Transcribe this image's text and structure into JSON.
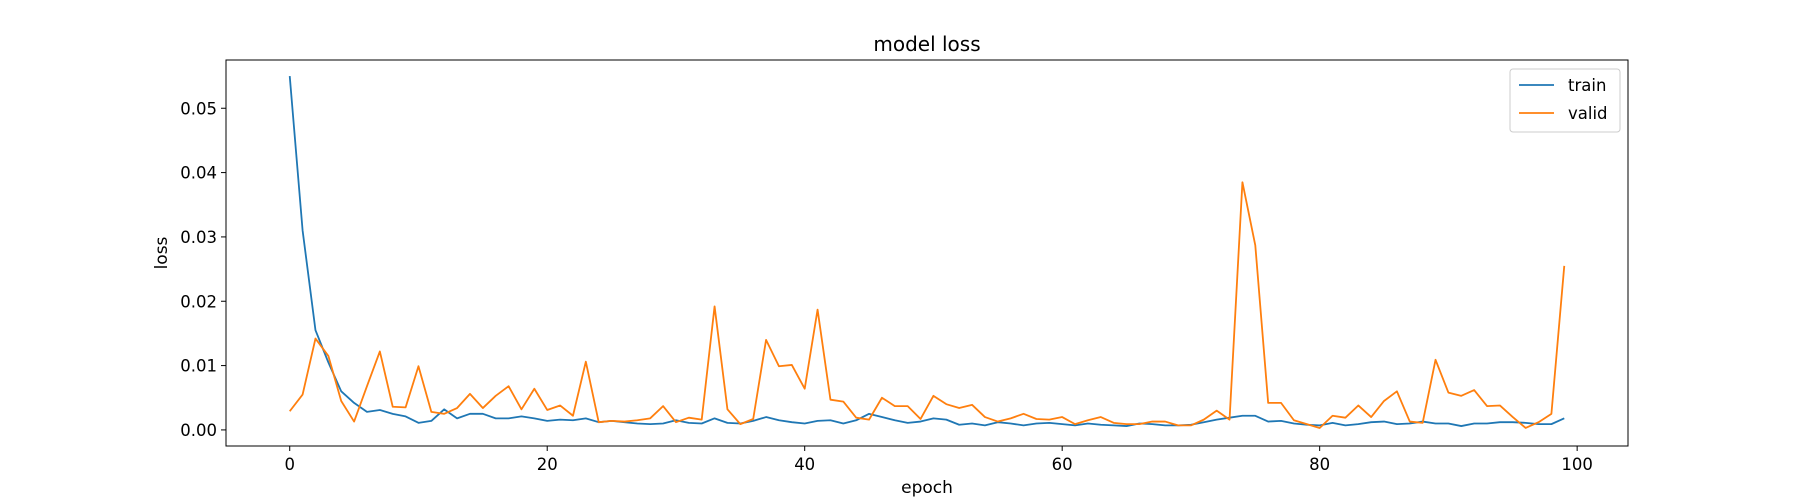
{
  "chart_data": {
    "type": "line",
    "title": "model loss",
    "xlabel": "epoch",
    "ylabel": "loss",
    "xlim": [
      -4.95,
      103.95
    ],
    "ylim": [
      -0.0025,
      0.0575
    ],
    "xticks": [
      0,
      20,
      40,
      60,
      80,
      100
    ],
    "xtick_labels": [
      "0",
      "20",
      "40",
      "60",
      "80",
      "100"
    ],
    "yticks": [
      0.0,
      0.01,
      0.02,
      0.03,
      0.04,
      0.05
    ],
    "ytick_labels": [
      "0.00",
      "0.01",
      "0.02",
      "0.03",
      "0.04",
      "0.05"
    ],
    "grid": false,
    "legend_position": "top-right",
    "series": [
      {
        "name": "train",
        "color": "#1f77b4",
        "values": [
          0.055,
          0.031,
          0.0155,
          0.0105,
          0.006,
          0.0042,
          0.0028,
          0.0031,
          0.0025,
          0.0021,
          0.0011,
          0.0014,
          0.0032,
          0.0018,
          0.0025,
          0.0025,
          0.0018,
          0.0018,
          0.0021,
          0.0018,
          0.0014,
          0.0016,
          0.0015,
          0.0018,
          0.0012,
          0.0014,
          0.0012,
          0.001,
          0.0009,
          0.001,
          0.0015,
          0.0011,
          0.001,
          0.0018,
          0.0011,
          0.001,
          0.0014,
          0.002,
          0.0015,
          0.0012,
          0.001,
          0.0014,
          0.0015,
          0.001,
          0.0015,
          0.0025,
          0.002,
          0.0015,
          0.0011,
          0.0013,
          0.0018,
          0.0016,
          0.0008,
          0.001,
          0.0007,
          0.0012,
          0.001,
          0.0007,
          0.001,
          0.0011,
          0.0009,
          0.0007,
          0.001,
          0.0008,
          0.0007,
          0.0006,
          0.001,
          0.0009,
          0.0007,
          0.0007,
          0.0008,
          0.0012,
          0.0016,
          0.0019,
          0.0022,
          0.0022,
          0.0013,
          0.0014,
          0.001,
          0.0008,
          0.0007,
          0.0011,
          0.0007,
          0.0009,
          0.0012,
          0.0013,
          0.0009,
          0.001,
          0.0013,
          0.001,
          0.001,
          0.0006,
          0.001,
          0.001,
          0.0012,
          0.0012,
          0.0011,
          0.0009,
          0.0009,
          0.0018
        ]
      },
      {
        "name": "valid",
        "color": "#ff7f0e",
        "values": [
          0.0029,
          0.0055,
          0.0142,
          0.0115,
          0.0045,
          0.0013,
          0.0068,
          0.0122,
          0.0036,
          0.0035,
          0.0099,
          0.0028,
          0.0025,
          0.0034,
          0.0056,
          0.0034,
          0.0053,
          0.0068,
          0.0032,
          0.0064,
          0.0031,
          0.0038,
          0.0022,
          0.0106,
          0.0012,
          0.0014,
          0.0013,
          0.0015,
          0.0018,
          0.0037,
          0.0012,
          0.0019,
          0.0016,
          0.0192,
          0.0032,
          0.0009,
          0.0017,
          0.014,
          0.0099,
          0.0101,
          0.0064,
          0.0187,
          0.0047,
          0.0044,
          0.0019,
          0.0016,
          0.005,
          0.0037,
          0.0037,
          0.0017,
          0.0053,
          0.004,
          0.0034,
          0.0039,
          0.002,
          0.0013,
          0.0018,
          0.0025,
          0.0017,
          0.0016,
          0.002,
          0.0009,
          0.0015,
          0.002,
          0.0011,
          0.0009,
          0.0009,
          0.0013,
          0.0013,
          0.0007,
          0.0007,
          0.0016,
          0.003,
          0.0016,
          0.0385,
          0.0287,
          0.0042,
          0.0042,
          0.0015,
          0.0009,
          0.0003,
          0.0022,
          0.0019,
          0.0038,
          0.002,
          0.0045,
          0.006,
          0.0013,
          0.0011,
          0.0109,
          0.0058,
          0.0053,
          0.0062,
          0.0037,
          0.0038,
          0.002,
          0.0003,
          0.0012,
          0.0025,
          0.0255
        ]
      }
    ]
  }
}
